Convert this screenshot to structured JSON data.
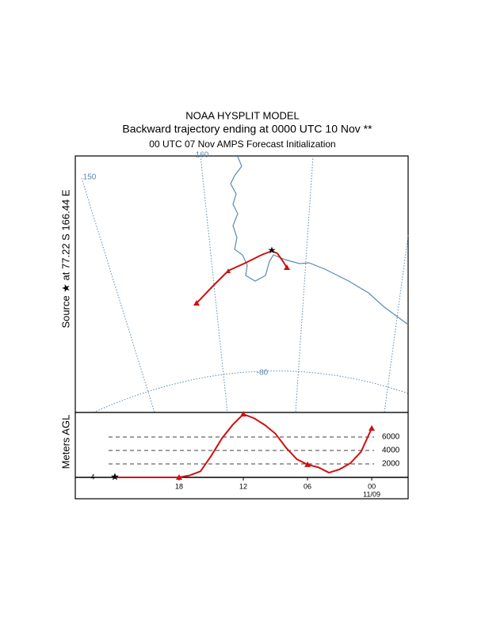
{
  "title": "NOAA HYSPLIT MODEL",
  "subtitle": "Backward trajectory ending at 0000 UTC 10 Nov **",
  "subtitle2": "00 UTC 07 Nov    AMPS  Forecast Initialization",
  "map": {
    "source_label": "Source ★ at  77.22 S  166.44 E",
    "grid_labels": [
      "150",
      "160",
      "-80"
    ]
  },
  "chart_data": {
    "type": "line",
    "y_label": "Meters AGL",
    "start_label": "4",
    "date_label": "11/09",
    "x": [
      0,
      1,
      2,
      3,
      4,
      5,
      6,
      7,
      8,
      9,
      10,
      11,
      12,
      13,
      14,
      15,
      16,
      17,
      18,
      19,
      20,
      21,
      22,
      23,
      24
    ],
    "series": [
      {
        "color": "#d01010",
        "values": [
          0,
          0,
          0,
          0,
          0,
          0,
          0,
          300,
          900,
          3200,
          5800,
          7800,
          9400,
          8800,
          7800,
          6500,
          4400,
          2700,
          1900,
          1500,
          700,
          1200,
          2100,
          3800,
          7300
        ]
      }
    ],
    "xlim": [
      -3.7,
      27.4
    ],
    "xticks": [
      {
        "value": 6,
        "label": "18"
      },
      {
        "value": 12,
        "label": "12"
      },
      {
        "value": 18,
        "label": "06"
      },
      {
        "value": 24,
        "label": "00"
      }
    ],
    "ylim": [
      -3180,
      9650
    ],
    "yticks": [
      2000,
      4000,
      6000
    ]
  }
}
